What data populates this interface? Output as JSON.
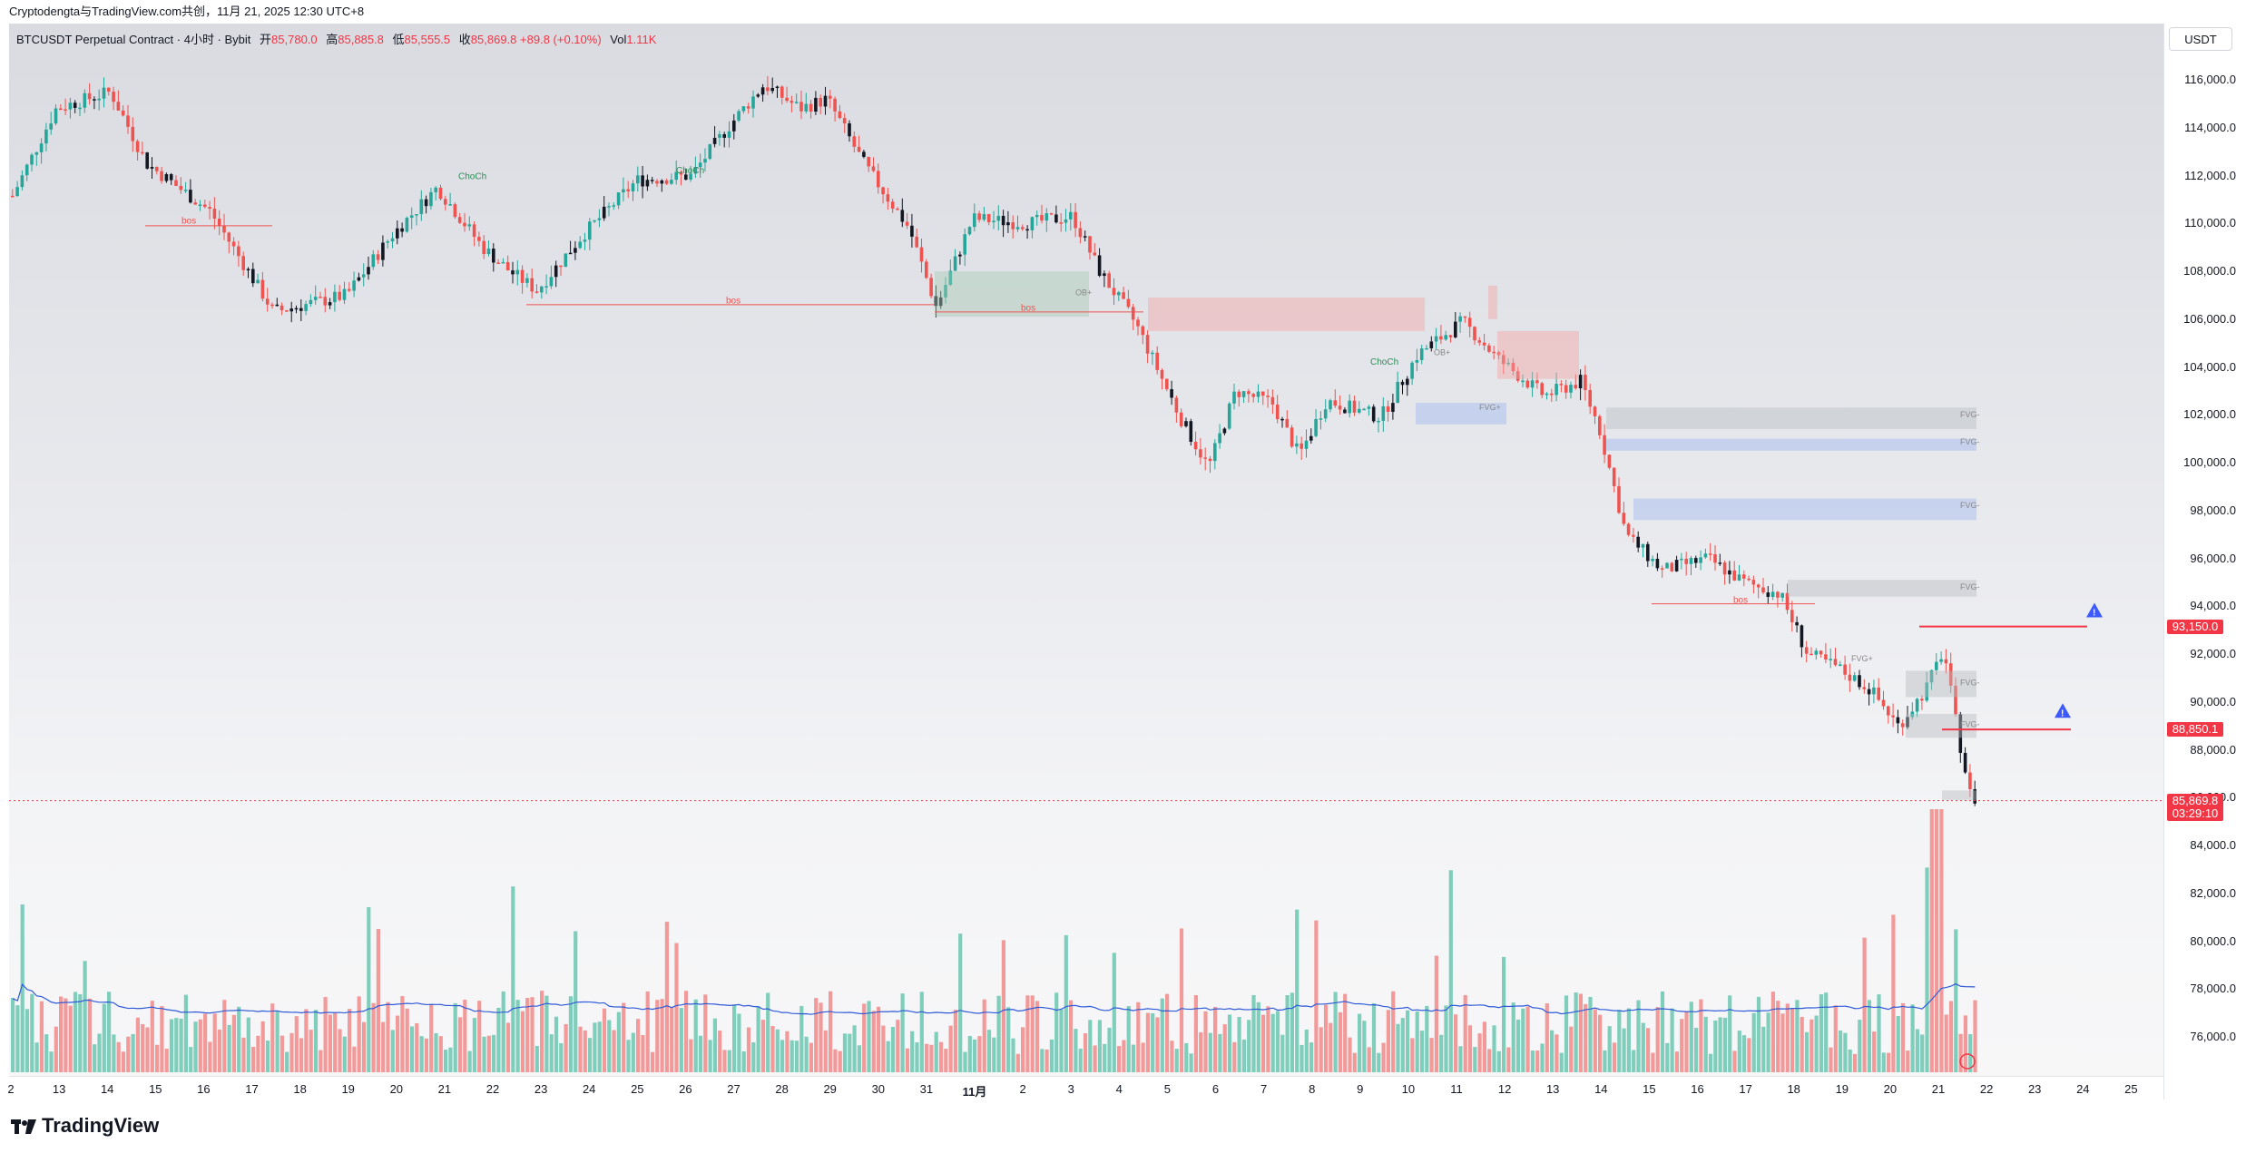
{
  "header": {
    "attribution": "Cryptodengta与TradingView.com共创，11月 21, 2025 12:30 UTC+8"
  },
  "legend": {
    "symbol": "BTCUSDT Perpetual Contract · 4小时 · Bybit",
    "open_label": "开",
    "open": "85,780.0",
    "high_label": "高",
    "high": "85,885.8",
    "low_label": "低",
    "low": "85,555.5",
    "close_label": "收",
    "close": "85,869.8",
    "change": "+89.8 (+0.10%)",
    "vol_label": "Vol",
    "vol": "1.11K"
  },
  "price_axis": {
    "currency": "USDT",
    "labels": [
      "116,000.0",
      "114,000.0",
      "112,000.0",
      "110,000.0",
      "108,000.0",
      "106,000.0",
      "104,000.0",
      "102,000.0",
      "100,000.0",
      "98,000.0",
      "96,000.0",
      "94,000.0",
      "92,000.0",
      "90,000.0",
      "88,000.0",
      "86,000.0",
      "84,000.0",
      "82,000.0",
      "80,000.0",
      "78,000.0",
      "76,000.0"
    ],
    "tags": [
      {
        "text": "93,150.0",
        "value": 93150,
        "color": "#f23645"
      },
      {
        "text": "88,850.1",
        "value": 88850,
        "color": "#f23645"
      },
      {
        "text": "85,869.8",
        "value": 85870,
        "color": "#f23645"
      },
      {
        "text": "03:29:10",
        "value": 85340,
        "color": "#f23645"
      }
    ]
  },
  "time_axis": {
    "labels": [
      "2",
      "13",
      "14",
      "15",
      "16",
      "17",
      "18",
      "19",
      "20",
      "21",
      "22",
      "23",
      "24",
      "25",
      "26",
      "27",
      "28",
      "29",
      "30",
      "31",
      "11月",
      "2",
      "3",
      "4",
      "5",
      "6",
      "7",
      "8",
      "9",
      "10",
      "11",
      "12",
      "13",
      "14",
      "15",
      "16",
      "17",
      "18",
      "19",
      "20",
      "21",
      "22",
      "23",
      "24",
      "25"
    ]
  },
  "annotations": {
    "choch": "ChoCh",
    "bos": "bos",
    "ob_plus": "OB+",
    "ob_minus": "OB-",
    "fvg_plus": "FVG+",
    "fvg_minus": "FVG-"
  },
  "colors": {
    "up": "#26a69a",
    "down": "#ef5350",
    "volume_up": "#7fcdbb",
    "volume_down": "#f29a9a",
    "ma": "#2f5bd8"
  },
  "footer": {
    "brand": "TradingView"
  }
}
